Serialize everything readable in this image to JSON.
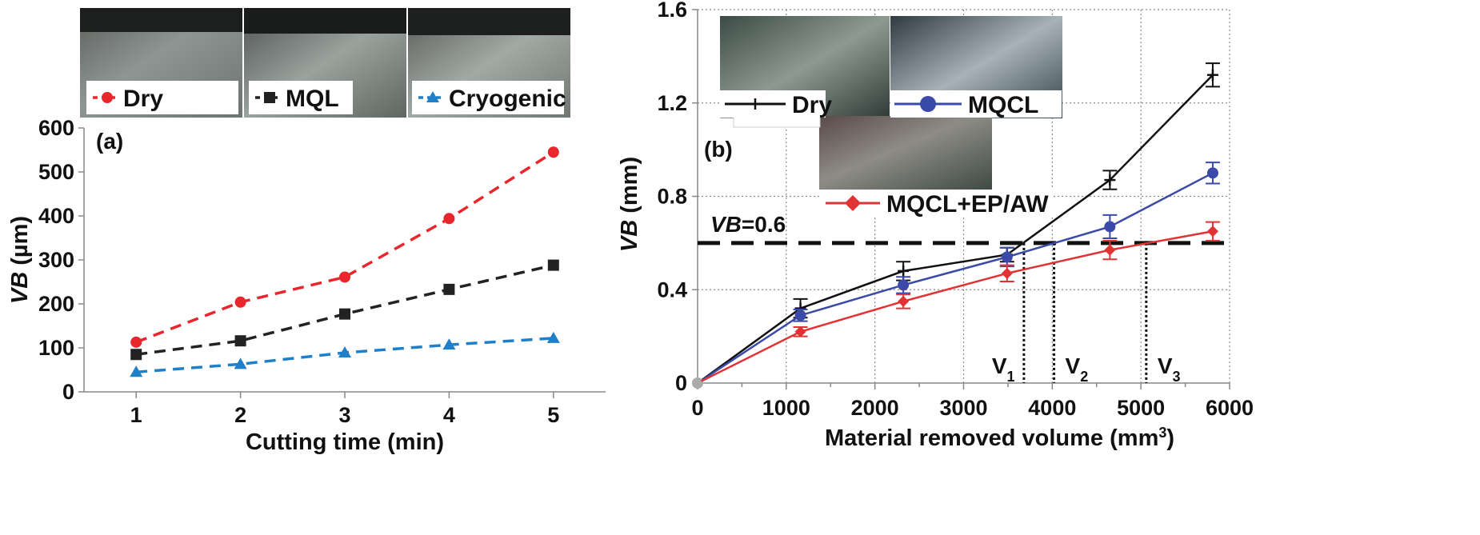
{
  "chart_data": [
    {
      "type": "line",
      "panel_label": "(a)",
      "xlabel": "Cutting time (min)",
      "ylabel_italic": "VB",
      "ylabel_rest": " (µm)",
      "x": [
        1,
        2,
        3,
        4,
        5
      ],
      "xticks": [
        "1",
        "2",
        "3",
        "4",
        "5"
      ],
      "xlim": [
        0.5,
        5.5
      ],
      "ylim": [
        0,
        600
      ],
      "yticks": [
        "0",
        "100",
        "200",
        "300",
        "400",
        "500",
        "600"
      ],
      "legend_placement": "top, over tool images",
      "series": [
        {
          "name": "Dry",
          "color": "#e8262c",
          "marker": "circle",
          "dash": true,
          "values": [
            113,
            204,
            261,
            394,
            545
          ]
        },
        {
          "name": "MQL",
          "color": "#222222",
          "marker": "square",
          "dash": true,
          "values": [
            85,
            116,
            177,
            233,
            288
          ]
        },
        {
          "name": "Cryogenic",
          "color": "#1f7fc8",
          "marker": "triangle",
          "dash": true,
          "values": [
            45,
            63,
            89,
            107,
            122
          ]
        }
      ]
    },
    {
      "type": "line",
      "panel_label": "(b)",
      "xlabel_main": "Material removed volume (mm",
      "xlabel_sup": "3",
      "xlabel_end": ")",
      "ylabel_italic": "VB",
      "ylabel_rest": " (mm)",
      "x": [
        0,
        1160,
        2320,
        3490,
        4650,
        5810
      ],
      "xlim": [
        0,
        6000
      ],
      "xticks": [
        "0",
        "1000",
        "2000",
        "3000",
        "4000",
        "5000",
        "6000"
      ],
      "ylim": [
        0,
        1.6
      ],
      "yticks": [
        "0",
        "0.4",
        "0.8",
        "1.2",
        "1.6"
      ],
      "grid": true,
      "threshold": {
        "value": 0.6,
        "label_italic": "VB",
        "label_rest": "=0.6"
      },
      "markers_v": [
        {
          "label": "V",
          "sub": "1",
          "x": 3680
        },
        {
          "label": "V",
          "sub": "2",
          "x": 4020
        },
        {
          "label": "V",
          "sub": "3",
          "x": 5060
        }
      ],
      "series": [
        {
          "name": "Dry",
          "color": "#111111",
          "marker": "plus",
          "values": [
            0,
            0.32,
            0.48,
            0.55,
            0.87,
            1.32
          ],
          "err": [
            0,
            0.04,
            0.04,
            0.03,
            0.04,
            0.05
          ]
        },
        {
          "name": "MQCL",
          "color": "#3b4aa8",
          "marker": "circle",
          "values": [
            0,
            0.29,
            0.42,
            0.54,
            0.67,
            0.9
          ],
          "err": [
            0,
            0.025,
            0.035,
            0.04,
            0.05,
            0.045
          ]
        },
        {
          "name": "MQCL+EP/AW",
          "color": "#e03434",
          "marker": "diamond",
          "values": [
            0,
            0.22,
            0.35,
            0.47,
            0.57,
            0.65
          ],
          "err": [
            0,
            0.02,
            0.03,
            0.035,
            0.04,
            0.04
          ]
        }
      ]
    }
  ]
}
